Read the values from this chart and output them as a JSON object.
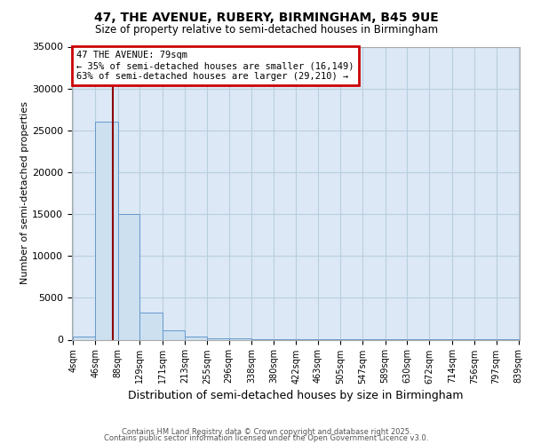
{
  "title": "47, THE AVENUE, RUBERY, BIRMINGHAM, B45 9UE",
  "subtitle": "Size of property relative to semi-detached houses in Birmingham",
  "xlabel": "Distribution of semi-detached houses by size in Birmingham",
  "ylabel": "Number of semi-detached properties",
  "bin_edges": [
    4,
    46,
    88,
    129,
    171,
    213,
    255,
    296,
    338,
    380,
    422,
    463,
    505,
    547,
    589,
    630,
    672,
    714,
    756,
    797,
    839
  ],
  "bar_heights": [
    400,
    26000,
    15000,
    3200,
    1100,
    400,
    200,
    150,
    50,
    20,
    10,
    5,
    5,
    5,
    5,
    5,
    5,
    5,
    5,
    5
  ],
  "bar_color": "#cce0f0",
  "bar_edge_color": "#6699cc",
  "property_size": 79,
  "annotation_line1": "47 THE AVENUE: 79sqm",
  "annotation_line2": "← 35% of semi-detached houses are smaller (16,149)",
  "annotation_line3": "63% of semi-detached houses are larger (29,210) →",
  "vline_color": "#8b0000",
  "annotation_box_color": "#cc0000",
  "ylim": [
    0,
    35000
  ],
  "yticks": [
    0,
    5000,
    10000,
    15000,
    20000,
    25000,
    30000,
    35000
  ],
  "bg_color": "#dce8f5",
  "grid_color": "#b8cfe0",
  "footer1": "Contains HM Land Registry data © Crown copyright and database right 2025.",
  "footer2": "Contains public sector information licensed under the Open Government Licence v3.0."
}
